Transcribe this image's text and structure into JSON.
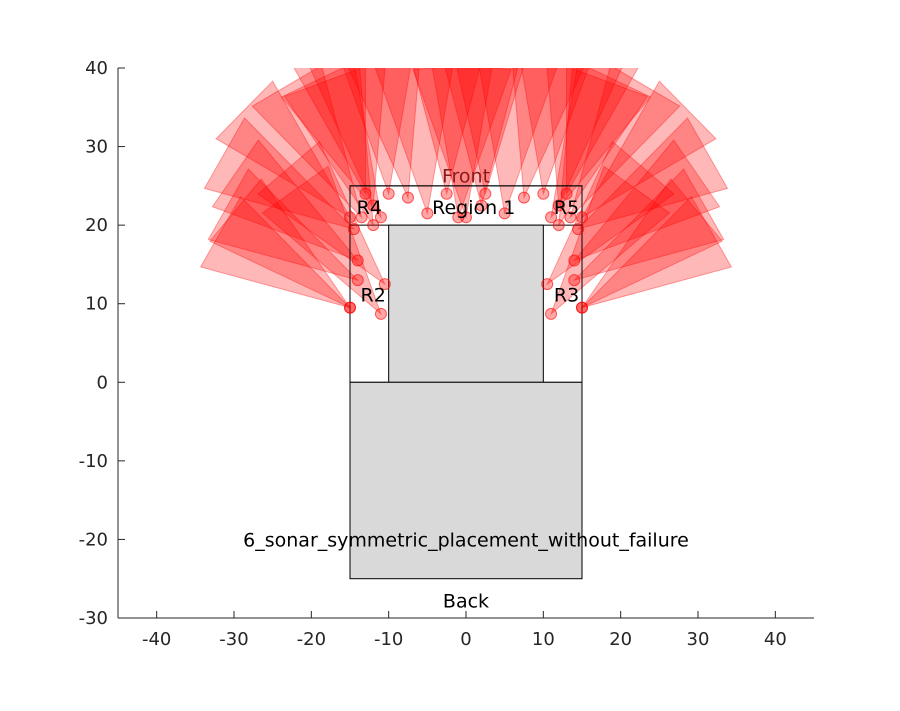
{
  "chart_data": {
    "type": "scatter",
    "title": "",
    "xlabel": "",
    "ylabel": "",
    "xlim": [
      -45,
      45
    ],
    "ylim": [
      -30,
      40
    ],
    "xticks": [
      -40,
      -30,
      -20,
      -10,
      0,
      10,
      20,
      30,
      40
    ],
    "yticks": [
      -30,
      -20,
      -10,
      0,
      10,
      20,
      30,
      40
    ],
    "grid": false,
    "colors": {
      "cone": "#ff0000",
      "region_fill": "#d9d9d9",
      "outline": "#000000",
      "axis": "#262626"
    },
    "rectangles": [
      {
        "name": "vehicle-outline",
        "x": [
          -15,
          15
        ],
        "y": [
          0,
          25
        ],
        "filled": false
      },
      {
        "name": "region-1-band",
        "x": [
          -15,
          15
        ],
        "y": [
          20,
          25
        ],
        "filled": false
      },
      {
        "name": "cabin",
        "x": [
          -10,
          10
        ],
        "y": [
          0,
          20
        ],
        "filled": true
      },
      {
        "name": "base",
        "x": [
          -15,
          15
        ],
        "y": [
          -25,
          0
        ],
        "filled": true
      }
    ],
    "annotations": [
      {
        "text": "Front",
        "x": 0,
        "y": 26.3,
        "kind": "front"
      },
      {
        "text": "Region 1",
        "x": 1,
        "y": 22.3
      },
      {
        "text": "R4",
        "x": -12.5,
        "y": 22.3
      },
      {
        "text": "R5",
        "x": 13,
        "y": 22.3
      },
      {
        "text": "R2",
        "x": -12,
        "y": 11.2
      },
      {
        "text": "R3",
        "x": 13,
        "y": 11.2
      },
      {
        "text": "6_sonar_symmetric_placement_without_failure",
        "x": 0,
        "y": -20
      },
      {
        "text": "Back",
        "x": 0,
        "y": -27.8
      }
    ],
    "sensors": [
      {
        "x": -15,
        "y": 9.5,
        "angle": 150
      },
      {
        "x": -15,
        "y": 9.5,
        "angle": 140
      },
      {
        "x": -14,
        "y": 13,
        "angle": 150
      },
      {
        "x": -14,
        "y": 15.5,
        "angle": 145
      },
      {
        "x": -11,
        "y": 8.7,
        "angle": 125
      },
      {
        "x": -10.5,
        "y": 12.5,
        "angle": 130
      },
      {
        "x": -14.5,
        "y": 19.5,
        "angle": 150
      },
      {
        "x": -15,
        "y": 21,
        "angle": 135
      },
      {
        "x": -13.5,
        "y": 21,
        "angle": 120
      },
      {
        "x": -12,
        "y": 20,
        "angle": 110
      },
      {
        "x": -12,
        "y": 22.5,
        "angle": 100
      },
      {
        "x": -11,
        "y": 21,
        "angle": 115
      },
      {
        "x": -10,
        "y": 24,
        "angle": 95
      },
      {
        "x": -13,
        "y": 24,
        "angle": 105
      },
      {
        "x": -7.5,
        "y": 23.5,
        "angle": 100
      },
      {
        "x": -5,
        "y": 21.5,
        "angle": 95
      },
      {
        "x": -2.5,
        "y": 24,
        "angle": 90
      },
      {
        "x": -1,
        "y": 21,
        "angle": 85
      },
      {
        "x": 0,
        "y": 21,
        "angle": 95
      },
      {
        "x": 2,
        "y": 22.5,
        "angle": 90
      },
      {
        "x": 2.5,
        "y": 24,
        "angle": 88
      },
      {
        "x": 5,
        "y": 21.5,
        "angle": 85
      },
      {
        "x": 7.5,
        "y": 23.5,
        "angle": 80
      },
      {
        "x": 10,
        "y": 24,
        "angle": 85
      },
      {
        "x": 11,
        "y": 21,
        "angle": 65
      },
      {
        "x": 12,
        "y": 20,
        "angle": 70
      },
      {
        "x": 12,
        "y": 22.5,
        "angle": 80
      },
      {
        "x": 13,
        "y": 24,
        "angle": 75
      },
      {
        "x": 13.5,
        "y": 21,
        "angle": 60
      },
      {
        "x": 14.5,
        "y": 19.5,
        "angle": 30
      },
      {
        "x": 15,
        "y": 21,
        "angle": 45
      },
      {
        "x": 14,
        "y": 15.5,
        "angle": 35
      },
      {
        "x": 14,
        "y": 13,
        "angle": 30
      },
      {
        "x": 10.5,
        "y": 12.5,
        "angle": 50
      },
      {
        "x": 11,
        "y": 8.7,
        "angle": 55
      },
      {
        "x": 15,
        "y": 9.5,
        "angle": 30
      },
      {
        "x": 15,
        "y": 9.5,
        "angle": 40
      }
    ],
    "cone_range": 20,
    "cone_half_angle": 15
  }
}
